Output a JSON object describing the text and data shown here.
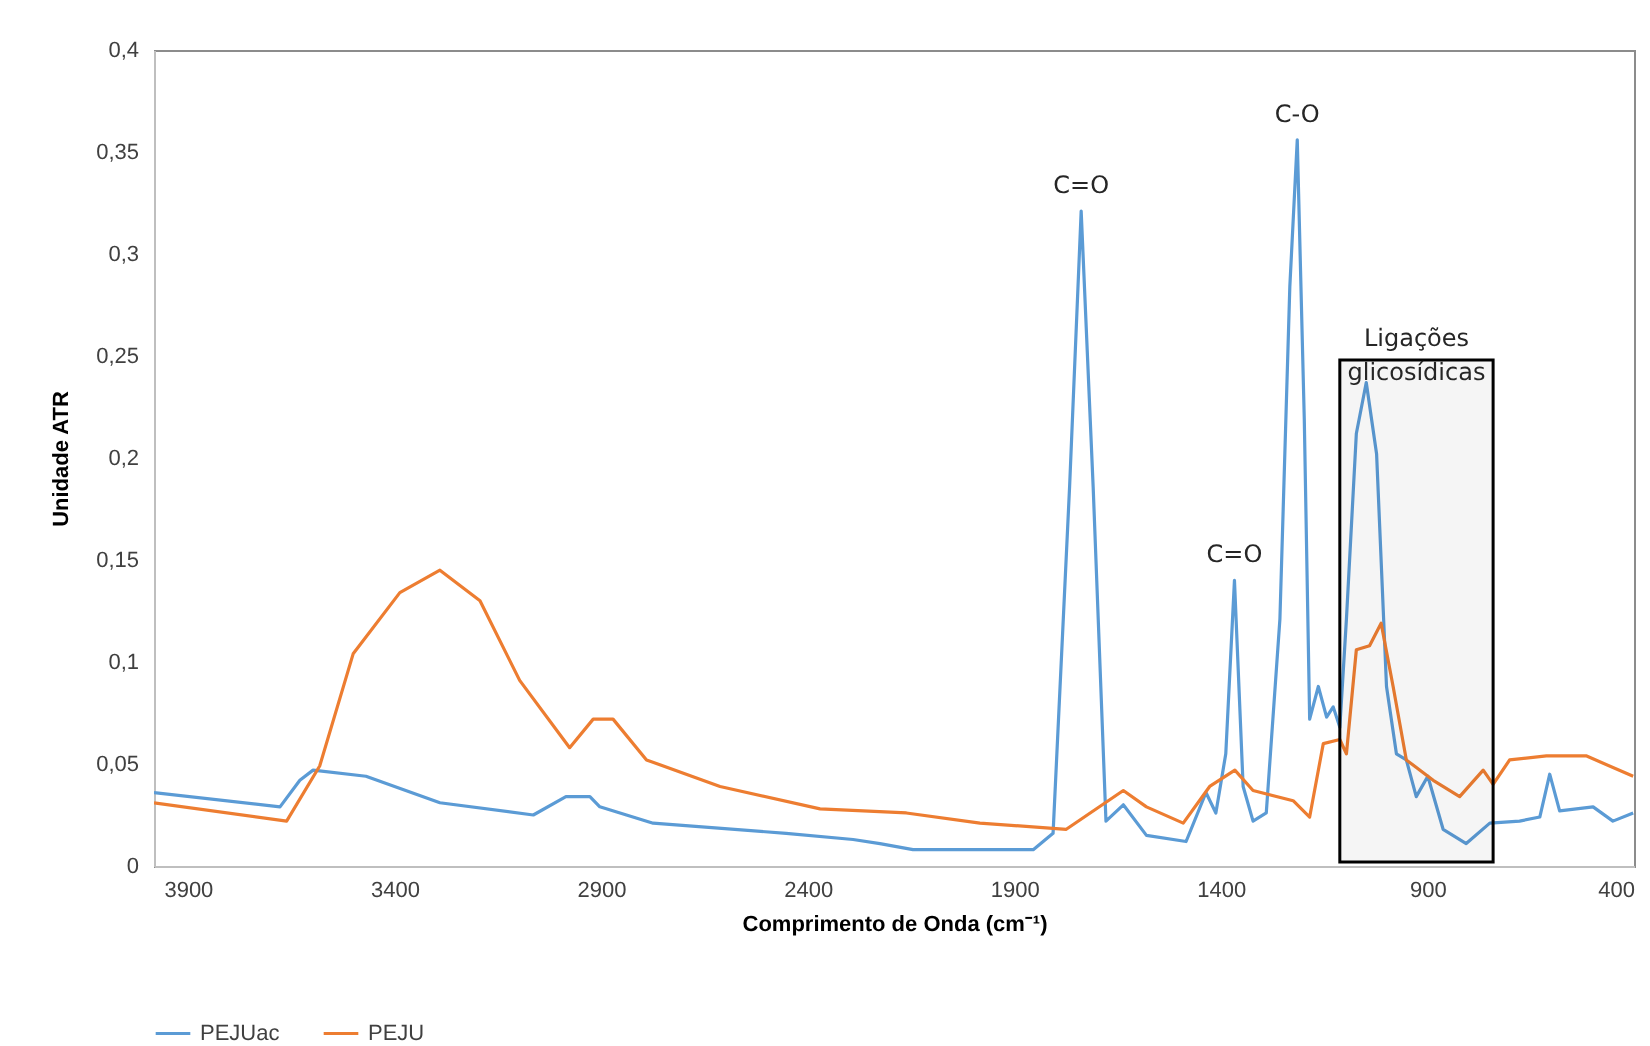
{
  "chart_data": {
    "type": "line",
    "xlabel": "Comprimento de Onda (cm⁻¹)",
    "ylabel": "Unidade ATR",
    "xlim": [
      3982,
      400
    ],
    "xticks": [
      3900,
      3400,
      2900,
      2400,
      1900,
      1400,
      900,
      400
    ],
    "ylim": [
      0,
      0.4
    ],
    "yticks": [
      0,
      {
        "value": 0.05,
        "label": "0,05"
      },
      {
        "value": 0.1,
        "label": "0,1"
      },
      {
        "value": 0.15,
        "label": "0,15"
      },
      {
        "value": 0.2,
        "label": "0,2"
      },
      {
        "value": 0.25,
        "label": "0,25"
      },
      {
        "value": 0.3,
        "label": "0,3"
      },
      {
        "value": 0.35,
        "label": "0,35"
      },
      {
        "value": 0.4,
        "label": "0,4"
      }
    ],
    "grid": false,
    "legend": "bottom",
    "marker": "none",
    "line_style": "solid",
    "series": [
      {
        "name": "PEJUac",
        "color": "#5b9bd5",
        "x": [
          3982,
          3677,
          3629,
          3597,
          3469,
          3290,
          3064,
          2985,
          2927,
          2903,
          2774,
          2452,
          2290,
          2225,
          2145,
          1854,
          1806,
          1766,
          1738,
          1709,
          1678,
          1636,
          1580,
          1484,
          1436,
          1412,
          1388,
          1367,
          1346,
          1322,
          1290,
          1257,
          1233,
          1215,
          1198,
          1185,
          1164,
          1144,
          1128,
          1112,
          1096,
          1072,
          1048,
          1023,
          999,
          975,
          951,
          927,
          899,
          862,
          806,
          749,
          677,
          628,
          604,
          580,
          499,
          451,
          402
        ],
        "values": [
          0.036,
          0.029,
          0.042,
          0.047,
          0.044,
          0.031,
          0.025,
          0.034,
          0.034,
          0.029,
          0.021,
          0.016,
          0.013,
          0.011,
          0.008,
          0.008,
          0.016,
          0.186,
          0.321,
          0.186,
          0.022,
          0.03,
          0.015,
          0.012,
          0.036,
          0.026,
          0.055,
          0.14,
          0.039,
          0.022,
          0.026,
          0.121,
          0.284,
          0.356,
          0.219,
          0.072,
          0.088,
          0.073,
          0.078,
          0.068,
          0.121,
          0.212,
          0.237,
          0.202,
          0.088,
          0.055,
          0.052,
          0.034,
          0.044,
          0.018,
          0.011,
          0.021,
          0.022,
          0.024,
          0.045,
          0.027,
          0.029,
          0.022,
          0.026
        ]
      },
      {
        "name": "PEJU",
        "color": "#ed7d31",
        "x": [
          3982,
          3661,
          3581,
          3500,
          3387,
          3290,
          3193,
          3097,
          2976,
          2919,
          2871,
          2790,
          2612,
          2370,
          2161,
          1983,
          1774,
          1636,
          1580,
          1491,
          1427,
          1366,
          1322,
          1225,
          1185,
          1152,
          1112,
          1096,
          1072,
          1040,
          1012,
          983,
          951,
          886,
          822,
          765,
          741,
          701,
          612,
          516,
          402
        ],
        "values": [
          0.031,
          0.022,
          0.049,
          0.104,
          0.134,
          0.145,
          0.13,
          0.091,
          0.058,
          0.072,
          0.072,
          0.052,
          0.039,
          0.028,
          0.026,
          0.021,
          0.018,
          0.037,
          0.029,
          0.021,
          0.039,
          0.047,
          0.037,
          0.032,
          0.024,
          0.06,
          0.062,
          0.055,
          0.106,
          0.108,
          0.119,
          0.088,
          0.052,
          0.042,
          0.034,
          0.047,
          0.04,
          0.052,
          0.054,
          0.054,
          0.044
        ]
      }
    ],
    "annotations": [
      {
        "text": "C=O",
        "x": 1738,
        "y": 0.321
      },
      {
        "text": "C=O",
        "x": 1367,
        "y": 0.14
      },
      {
        "text": "C-O",
        "x": 1215,
        "y": 0.356
      }
    ],
    "bands": [
      {
        "axis": "x",
        "from": 1112,
        "to": 741,
        "label": "Ligações glicosídicas",
        "color": "#000000"
      }
    ]
  }
}
